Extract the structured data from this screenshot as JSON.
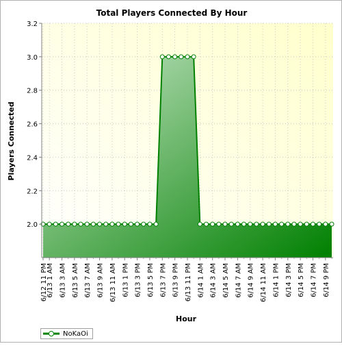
{
  "chart_data": {
    "type": "area",
    "title": "Total Players Connected By Hour",
    "xlabel": "Hour",
    "ylabel": "Players Connected",
    "ylim": [
      1.8,
      3.2
    ],
    "yticks": [
      "2.0",
      "2.2",
      "2.4",
      "2.6",
      "2.8",
      "3.0",
      "3.2"
    ],
    "x_tick_labels": [
      "6/12 11 PM",
      "6/13 1 AM",
      "6/13 3 AM",
      "6/13 5 AM",
      "6/13 7 AM",
      "6/13 9 AM",
      "6/13 11 AM",
      "6/13 1 PM",
      "6/13 3 PM",
      "6/13 5 PM",
      "6/13 7 PM",
      "6/13 9 PM",
      "6/13 11 PM",
      "6/14 1 AM",
      "6/14 3 AM",
      "6/14 5 AM",
      "6/14 7 AM",
      "6/14 9 AM",
      "6/14 11 AM",
      "6/14 1 PM",
      "6/14 3 PM",
      "6/14 5 PM",
      "6/14 7 PM",
      "6/14 9 PM"
    ],
    "series": [
      {
        "name": "NoKaOi",
        "x": [
          "6/12 11 PM",
          "6/13 1 AM",
          "6/13 2 AM",
          "6/13 3 AM",
          "6/13 4 AM",
          "6/13 5 AM",
          "6/13 6 AM",
          "6/13 7 AM",
          "6/13 8 AM",
          "6/13 9 AM",
          "6/13 10 AM",
          "6/13 11 AM",
          "6/13 12 PM",
          "6/13 1 PM",
          "6/13 2 PM",
          "6/13 3 PM",
          "6/13 4 PM",
          "6/13 5 PM",
          "6/13 6 PM",
          "6/13 7 PM",
          "6/13 8 PM",
          "6/13 9 PM",
          "6/13 10 PM",
          "6/13 11 PM",
          "6/14 12 AM",
          "6/14 1 AM",
          "6/14 2 AM",
          "6/14 3 AM",
          "6/14 4 AM",
          "6/14 5 AM",
          "6/14 6 AM",
          "6/14 7 AM",
          "6/14 8 AM",
          "6/14 9 AM",
          "6/14 10 AM",
          "6/14 11 AM",
          "6/14 12 PM",
          "6/14 1 PM",
          "6/14 2 PM",
          "6/14 3 PM",
          "6/14 4 PM",
          "6/14 5 PM",
          "6/14 6 PM",
          "6/14 7 PM",
          "6/14 8 PM",
          "6/14 9 PM",
          "6/14 10 PM"
        ],
        "values": [
          2,
          2,
          2,
          2,
          2,
          2,
          2,
          2,
          2,
          2,
          2,
          2,
          2,
          2,
          2,
          2,
          2,
          2,
          2,
          3,
          3,
          3,
          3,
          3,
          3,
          2,
          2,
          2,
          2,
          2,
          2,
          2,
          2,
          2,
          2,
          2,
          2,
          2,
          2,
          2,
          2,
          2,
          2,
          2,
          2,
          2,
          2
        ]
      }
    ],
    "series_color": "#008000",
    "plot_background": "#ffffe0",
    "grid": true,
    "legend": "bottom-left"
  }
}
